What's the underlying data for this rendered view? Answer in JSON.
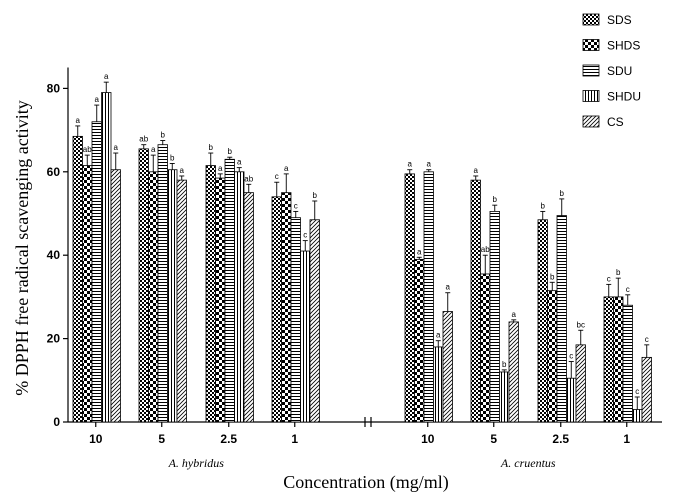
{
  "chart_data": {
    "type": "bar",
    "xlabel": "Concentration (mg/ml)",
    "ylabel": "% DPPH free radical scavenging activity",
    "ylim": [
      0,
      85
    ],
    "yticks": [
      0,
      20,
      40,
      60,
      80
    ],
    "legend_position": "top-right",
    "colors": {
      "axis": "#000000",
      "bar_stroke": "#000000",
      "bar_fill": "#ffffff"
    },
    "series": [
      {
        "name": "SDS",
        "pattern": "fine-checker"
      },
      {
        "name": "SHDS",
        "pattern": "coarse-checker"
      },
      {
        "name": "SDU",
        "pattern": "horizontal-lines"
      },
      {
        "name": "SHDU",
        "pattern": "vertical-lines"
      },
      {
        "name": "CS",
        "pattern": "diagonal-lines"
      }
    ],
    "species": [
      {
        "name": "A. hybridus",
        "groups": [
          {
            "label": "10",
            "values": [
              68.5,
              61.5,
              72,
              79,
              60.5
            ],
            "errors": [
              2.5,
              2.5,
              4,
              2.5,
              4
            ],
            "sig": [
              "a",
              "ab",
              "a",
              "a",
              "a"
            ]
          },
          {
            "label": "5",
            "values": [
              65.5,
              60,
              66.5,
              60.5,
              58
            ],
            "errors": [
              1,
              4,
              1,
              1.5,
              1
            ],
            "sig": [
              "ab",
              "a",
              "b",
              "b",
              "a"
            ]
          },
          {
            "label": "2.5",
            "values": [
              61.5,
              58.5,
              63,
              60,
              55
            ],
            "errors": [
              3,
              1,
              0.5,
              1,
              2
            ],
            "sig": [
              "b",
              "a",
              "b",
              "a",
              "ab"
            ]
          },
          {
            "label": "1",
            "values": [
              54,
              55,
              49,
              41,
              48.5
            ],
            "errors": [
              3.5,
              4.5,
              1.5,
              2.5,
              4.5
            ],
            "sig": [
              "c",
              "a",
              "c",
              "c",
              "b"
            ]
          }
        ]
      },
      {
        "name": "A. cruentus",
        "groups": [
          {
            "label": "10",
            "values": [
              59.5,
              39,
              60,
              18,
              26.5
            ],
            "errors": [
              1,
              0.5,
              0.5,
              1.5,
              4.5
            ],
            "sig": [
              "a",
              "a",
              "a",
              "a",
              "a"
            ]
          },
          {
            "label": "5",
            "values": [
              58,
              35.5,
              50.5,
              12,
              24
            ],
            "errors": [
              1,
              4.5,
              1.5,
              0.5,
              0.5
            ],
            "sig": [
              "a",
              "ab",
              "b",
              "b",
              "a"
            ]
          },
          {
            "label": "2.5",
            "values": [
              48.5,
              31.5,
              49.5,
              10.5,
              18.5
            ],
            "errors": [
              2,
              2,
              4,
              4,
              3.5
            ],
            "sig": [
              "b",
              "b",
              "b",
              "c",
              "bc"
            ]
          },
          {
            "label": "1",
            "values": [
              30,
              30,
              28,
              3,
              15.5
            ],
            "errors": [
              3,
              4.5,
              2.5,
              3,
              3
            ],
            "sig": [
              "c",
              "b",
              "c",
              "c",
              "c"
            ]
          }
        ]
      }
    ]
  }
}
